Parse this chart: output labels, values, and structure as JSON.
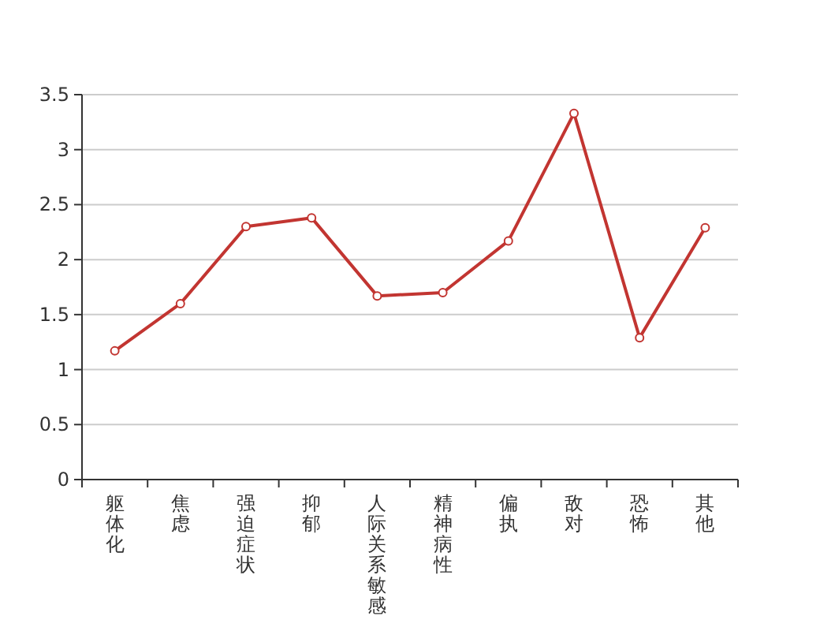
{
  "chart_data": {
    "type": "line",
    "categories": [
      "躯体化",
      "焦虑",
      "强迫症状",
      "抑郁",
      "人际关系敏感",
      "精神病性",
      "偏执",
      "敌对",
      "恐怖",
      "其他"
    ],
    "series": [
      {
        "color": "#c23531",
        "values": [
          1.17,
          1.6,
          2.3,
          2.38,
          1.67,
          1.7,
          2.17,
          3.33,
          1.29,
          2.29
        ]
      }
    ],
    "ylim": [
      0,
      3.5
    ],
    "yticks": [
      0,
      0.5,
      1,
      1.5,
      2,
      2.5,
      3,
      3.5
    ],
    "grid": "y",
    "marker": "circle"
  }
}
